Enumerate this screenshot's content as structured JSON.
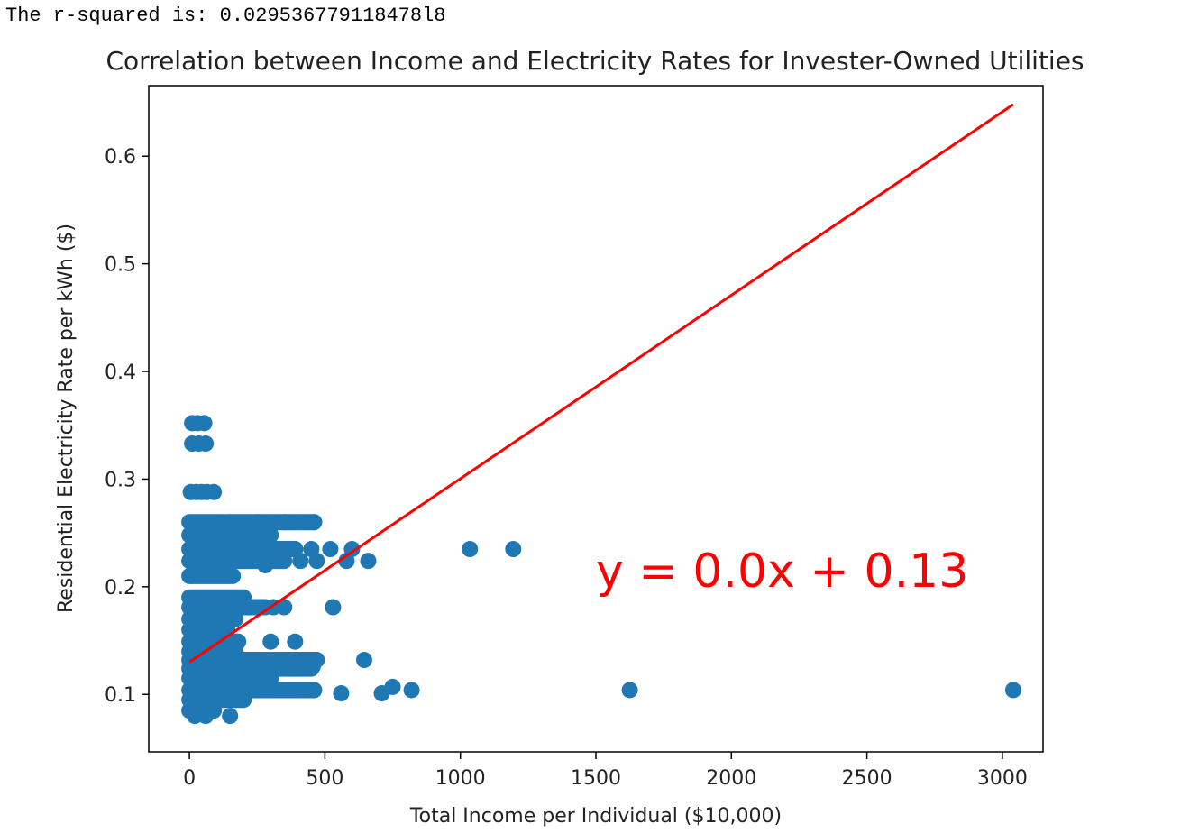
{
  "output": {
    "text": "The r-squared is: 0.029536779118478l8"
  },
  "chart_data": {
    "type": "scatter",
    "title": "Correlation between Income and Electricity Rates for Invester-Owned Utilities",
    "xlabel": "Total Income per Individual ($10,000)",
    "ylabel": "Residential Electricity Rate per kWh ($)",
    "xlim": [
      -150,
      3150
    ],
    "ylim": [
      0.0466,
      0.6655
    ],
    "x_ticks": [
      0,
      500,
      1000,
      1500,
      2000,
      2500,
      3000
    ],
    "y_ticks": [
      0.1,
      0.2,
      0.3,
      0.4,
      0.5,
      0.6
    ],
    "grid": false,
    "marker_color": "#1f77b4",
    "series": [
      {
        "points": [
          [
            10,
            0.352
          ],
          [
            30,
            0.352
          ],
          [
            55,
            0.352
          ],
          [
            10,
            0.333
          ],
          [
            35,
            0.333
          ],
          [
            60,
            0.333
          ],
          [
            5,
            0.288
          ],
          [
            25,
            0.288
          ],
          [
            45,
            0.288
          ],
          [
            65,
            0.288
          ],
          [
            90,
            0.288
          ],
          [
            520,
            0.235
          ],
          [
            600,
            0.235
          ],
          [
            1035,
            0.235
          ],
          [
            1195,
            0.235
          ],
          [
            450,
            0.235
          ],
          [
            390,
            0.235
          ],
          [
            660,
            0.224
          ],
          [
            580,
            0.224
          ],
          [
            470,
            0.224
          ],
          [
            410,
            0.224
          ],
          [
            530,
            0.181
          ],
          [
            350,
            0.181
          ],
          [
            310,
            0.181
          ],
          [
            260,
            0.181
          ],
          [
            390,
            0.149
          ],
          [
            300,
            0.149
          ],
          [
            645,
            0.132
          ],
          [
            460,
            0.132
          ],
          [
            420,
            0.132
          ],
          [
            380,
            0.132
          ],
          [
            340,
            0.132
          ],
          [
            300,
            0.132
          ],
          [
            455,
            0.126
          ],
          [
            400,
            0.126
          ],
          [
            560,
            0.101
          ],
          [
            710,
            0.101
          ],
          [
            750,
            0.107
          ],
          [
            820,
            0.104
          ],
          [
            1625,
            0.104
          ],
          [
            3040,
            0.104
          ],
          [
            460,
            0.104
          ],
          [
            420,
            0.104
          ],
          [
            380,
            0.104
          ],
          [
            340,
            0.104
          ],
          [
            300,
            0.104
          ],
          [
            150,
            0.08
          ],
          [
            60,
            0.08
          ],
          [
            20,
            0.08
          ],
          [
            40,
            0.125
          ],
          [
            90,
            0.115
          ],
          [
            130,
            0.14
          ],
          [
            80,
            0.16
          ],
          [
            30,
            0.17
          ],
          [
            160,
            0.1
          ],
          [
            200,
            0.11
          ],
          [
            240,
            0.125
          ],
          [
            110,
            0.22
          ],
          [
            60,
            0.235
          ],
          [
            150,
            0.26
          ],
          [
            250,
            0.26
          ],
          [
            350,
            0.26
          ],
          [
            460,
            0.26
          ],
          [
            180,
            0.23
          ],
          [
            280,
            0.22
          ]
        ]
      }
    ],
    "bands": [
      {
        "y": 0.26,
        "x_from": 0,
        "x_to": 460
      },
      {
        "y": 0.248,
        "x_from": 0,
        "x_to": 300
      },
      {
        "y": 0.235,
        "x_from": 0,
        "x_to": 390
      },
      {
        "y": 0.224,
        "x_from": 0,
        "x_to": 350
      },
      {
        "y": 0.21,
        "x_from": 0,
        "x_to": 160
      },
      {
        "y": 0.19,
        "x_from": 0,
        "x_to": 200
      },
      {
        "y": 0.181,
        "x_from": 0,
        "x_to": 280
      },
      {
        "y": 0.17,
        "x_from": 0,
        "x_to": 170
      },
      {
        "y": 0.16,
        "x_from": 0,
        "x_to": 140
      },
      {
        "y": 0.149,
        "x_from": 0,
        "x_to": 180
      },
      {
        "y": 0.14,
        "x_from": 0,
        "x_to": 170
      },
      {
        "y": 0.132,
        "x_from": 0,
        "x_to": 470
      },
      {
        "y": 0.124,
        "x_from": 0,
        "x_to": 450
      },
      {
        "y": 0.115,
        "x_from": 0,
        "x_to": 300
      },
      {
        "y": 0.104,
        "x_from": 0,
        "x_to": 460
      },
      {
        "y": 0.095,
        "x_from": 0,
        "x_to": 200
      },
      {
        "y": 0.085,
        "x_from": 0,
        "x_to": 90
      }
    ],
    "regression": {
      "color": "#ff0000",
      "x": [
        0,
        3040
      ],
      "y": [
        0.13,
        0.648
      ],
      "equation": "y = 0.0x + 0.13",
      "equation_x": 1500,
      "equation_y": 0.2
    }
  }
}
